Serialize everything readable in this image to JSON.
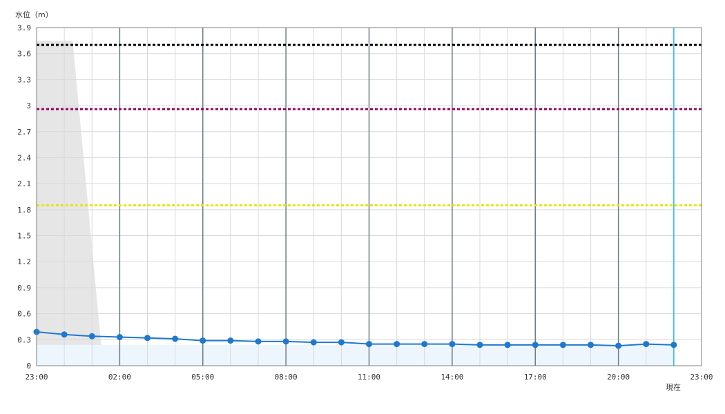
{
  "chart_data": {
    "type": "line",
    "ylabel": "水位（m）",
    "now_label": "現在",
    "ylim": [
      0,
      3.9
    ],
    "y_ticks": [
      "0",
      "0.3",
      "0.6",
      "0.9",
      "1.2",
      "1.5",
      "1.8",
      "2.1",
      "2.4",
      "2.7",
      "3",
      "3.3",
      "3.6",
      "3.9"
    ],
    "x_ticks": [
      "23:00",
      "02:00",
      "05:00",
      "08:00",
      "11:00",
      "14:00",
      "17:00",
      "20:00",
      "23:00"
    ],
    "x_hours": 24,
    "now_hour": 23,
    "grid": true,
    "series": [
      {
        "x": [
          0,
          1,
          2,
          3,
          4,
          5,
          6,
          7,
          8,
          9,
          10,
          11,
          12,
          13,
          14,
          15,
          16,
          17,
          18,
          19,
          20,
          21,
          22,
          23
        ],
        "values": [
          0.39,
          0.36,
          0.34,
          0.33,
          0.32,
          0.31,
          0.29,
          0.29,
          0.28,
          0.28,
          0.27,
          0.27,
          0.25,
          0.25,
          0.25,
          0.25,
          0.24,
          0.24,
          0.24,
          0.24,
          0.24,
          0.23,
          0.25,
          0.24
        ],
        "color": "#1e78d0"
      }
    ],
    "threshold_lines": [
      {
        "value": 3.7,
        "color": "#000000"
      },
      {
        "value": 2.96,
        "color": "#990066"
      },
      {
        "value": 1.85,
        "color": "#e6e600"
      }
    ],
    "shaded_area": {
      "top_value": 3.75,
      "color": "#e6e6e6"
    },
    "colors": {
      "axis": "#7f7f7f",
      "grid": "#d9d9d9",
      "major_grid": "#6d7b87",
      "now_line": "#29b6e8",
      "fill": "#eef6fd"
    }
  }
}
